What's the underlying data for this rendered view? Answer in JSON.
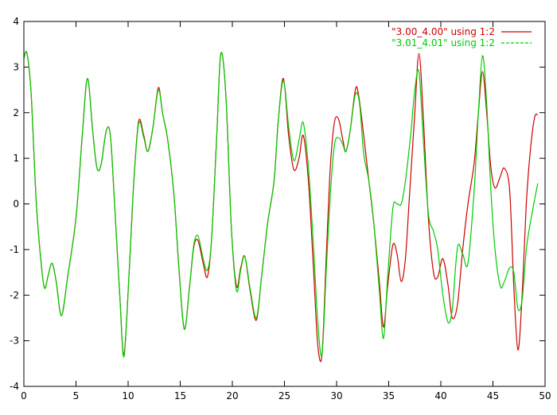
{
  "chart_data": {
    "type": "line",
    "title": "",
    "xlabel": "",
    "ylabel": "",
    "xlim": [
      0,
      50
    ],
    "ylim": [
      -4,
      4
    ],
    "x_ticks": [
      "0",
      "5",
      "10",
      "15",
      "20",
      "25",
      "30",
      "35",
      "40",
      "45",
      "50"
    ],
    "y_ticks": [
      "4",
      "3",
      "2",
      "1",
      "0",
      "-1",
      "-2",
      "-3",
      "-4"
    ],
    "grid": false,
    "legend_position": "top-right",
    "series": [
      {
        "name": "\"3.00_4.00\" using 1:2",
        "color": "#cc0000",
        "points": [
          [
            0,
            3.2
          ],
          [
            0.3,
            3.3
          ],
          [
            0.7,
            2.4
          ],
          [
            1.2,
            0.0
          ],
          [
            1.7,
            -1.4
          ],
          [
            2.0,
            -1.85
          ],
          [
            2.3,
            -1.6
          ],
          [
            2.7,
            -1.3
          ],
          [
            3.1,
            -1.7
          ],
          [
            3.6,
            -2.45
          ],
          [
            4.2,
            -1.6
          ],
          [
            5.0,
            -0.3
          ],
          [
            5.6,
            1.5
          ],
          [
            6.1,
            2.75
          ],
          [
            6.6,
            1.6
          ],
          [
            7.0,
            0.8
          ],
          [
            7.4,
            0.85
          ],
          [
            7.9,
            1.6
          ],
          [
            8.3,
            1.5
          ],
          [
            8.7,
            0.0
          ],
          [
            9.2,
            -2.0
          ],
          [
            9.6,
            -3.3
          ],
          [
            10.1,
            -1.5
          ],
          [
            10.5,
            0.3
          ],
          [
            11.0,
            1.8
          ],
          [
            11.5,
            1.5
          ],
          [
            11.9,
            1.15
          ],
          [
            12.4,
            1.7
          ],
          [
            12.9,
            2.55
          ],
          [
            13.3,
            2.0
          ],
          [
            13.8,
            1.4
          ],
          [
            14.4,
            0.2
          ],
          [
            14.9,
            -1.5
          ],
          [
            15.4,
            -2.75
          ],
          [
            15.9,
            -1.8
          ],
          [
            16.3,
            -0.95
          ],
          [
            16.7,
            -0.8
          ],
          [
            17.2,
            -1.3
          ],
          [
            17.6,
            -1.6
          ],
          [
            18.0,
            -0.8
          ],
          [
            18.5,
            1.5
          ],
          [
            18.9,
            3.3
          ],
          [
            19.4,
            2.3
          ],
          [
            19.9,
            -0.5
          ],
          [
            20.4,
            -1.8
          ],
          [
            20.8,
            -1.4
          ],
          [
            21.2,
            -1.15
          ],
          [
            21.7,
            -1.9
          ],
          [
            22.3,
            -2.55
          ],
          [
            22.8,
            -1.6
          ],
          [
            23.4,
            -0.4
          ],
          [
            24.0,
            0.5
          ],
          [
            24.4,
            1.8
          ],
          [
            24.9,
            2.75
          ],
          [
            25.4,
            1.5
          ],
          [
            25.9,
            0.75
          ],
          [
            26.4,
            1.0
          ],
          [
            26.8,
            1.5
          ],
          [
            27.3,
            0.5
          ],
          [
            27.8,
            -1.5
          ],
          [
            28.2,
            -3.1
          ],
          [
            28.6,
            -3.3
          ],
          [
            29.0,
            -1.2
          ],
          [
            29.4,
            0.8
          ],
          [
            29.8,
            1.8
          ],
          [
            30.2,
            1.85
          ],
          [
            30.6,
            1.4
          ],
          [
            30.9,
            1.15
          ],
          [
            31.3,
            1.6
          ],
          [
            31.8,
            2.5
          ],
          [
            32.1,
            2.4
          ],
          [
            32.6,
            1.5
          ],
          [
            33.1,
            0.5
          ],
          [
            33.6,
            -0.5
          ],
          [
            34.1,
            -1.7
          ],
          [
            34.5,
            -2.7
          ],
          [
            34.9,
            -1.8
          ],
          [
            35.4,
            -0.9
          ],
          [
            35.8,
            -1.1
          ],
          [
            36.2,
            -1.7
          ],
          [
            36.6,
            -1.2
          ],
          [
            37.0,
            0.2
          ],
          [
            37.5,
            2.0
          ],
          [
            37.9,
            3.3
          ],
          [
            38.3,
            2.0
          ],
          [
            38.8,
            -0.3
          ],
          [
            39.3,
            -1.5
          ],
          [
            39.7,
            -1.6
          ],
          [
            40.2,
            -1.2
          ],
          [
            40.7,
            -1.8
          ],
          [
            41.1,
            -2.5
          ],
          [
            41.6,
            -2.2
          ],
          [
            42.1,
            -1.0
          ],
          [
            42.6,
            0.0
          ],
          [
            43.2,
            0.9
          ],
          [
            43.6,
            2.0
          ],
          [
            44.0,
            2.9
          ],
          [
            44.4,
            2.0
          ],
          [
            44.8,
            0.8
          ],
          [
            45.2,
            0.35
          ],
          [
            45.7,
            0.6
          ],
          [
            46.1,
            0.78
          ],
          [
            46.6,
            0.3
          ],
          [
            47.0,
            -1.8
          ],
          [
            47.4,
            -3.2
          ],
          [
            47.8,
            -2.0
          ],
          [
            48.2,
            0.0
          ],
          [
            48.6,
            1.2
          ],
          [
            49.0,
            1.9
          ],
          [
            49.3,
            1.95
          ]
        ]
      },
      {
        "name": "\"3.01_4.01\" using 1:2",
        "color": "#00cc00",
        "points": [
          [
            0,
            3.2
          ],
          [
            0.3,
            3.3
          ],
          [
            0.7,
            2.4
          ],
          [
            1.2,
            0.0
          ],
          [
            1.7,
            -1.4
          ],
          [
            2.0,
            -1.85
          ],
          [
            2.3,
            -1.6
          ],
          [
            2.7,
            -1.3
          ],
          [
            3.1,
            -1.7
          ],
          [
            3.6,
            -2.45
          ],
          [
            4.2,
            -1.6
          ],
          [
            5.0,
            -0.3
          ],
          [
            5.6,
            1.5
          ],
          [
            6.1,
            2.75
          ],
          [
            6.6,
            1.6
          ],
          [
            7.0,
            0.8
          ],
          [
            7.4,
            0.85
          ],
          [
            7.9,
            1.6
          ],
          [
            8.3,
            1.5
          ],
          [
            8.7,
            0.0
          ],
          [
            9.2,
            -2.0
          ],
          [
            9.6,
            -3.35
          ],
          [
            10.1,
            -1.5
          ],
          [
            10.5,
            0.3
          ],
          [
            11.0,
            1.75
          ],
          [
            11.5,
            1.45
          ],
          [
            11.9,
            1.15
          ],
          [
            12.4,
            1.7
          ],
          [
            12.9,
            2.5
          ],
          [
            13.3,
            2.0
          ],
          [
            13.8,
            1.4
          ],
          [
            14.4,
            0.2
          ],
          [
            14.9,
            -1.5
          ],
          [
            15.4,
            -2.75
          ],
          [
            15.9,
            -1.8
          ],
          [
            16.3,
            -0.9
          ],
          [
            16.7,
            -0.7
          ],
          [
            17.2,
            -1.2
          ],
          [
            17.6,
            -1.45
          ],
          [
            18.0,
            -0.8
          ],
          [
            18.5,
            1.5
          ],
          [
            18.9,
            3.3
          ],
          [
            19.4,
            2.3
          ],
          [
            19.9,
            -0.5
          ],
          [
            20.4,
            -1.9
          ],
          [
            20.8,
            -1.45
          ],
          [
            21.2,
            -1.15
          ],
          [
            21.7,
            -1.85
          ],
          [
            22.3,
            -2.5
          ],
          [
            22.8,
            -1.6
          ],
          [
            23.4,
            -0.4
          ],
          [
            24.0,
            0.5
          ],
          [
            24.4,
            1.8
          ],
          [
            24.9,
            2.7
          ],
          [
            25.4,
            1.7
          ],
          [
            25.9,
            0.95
          ],
          [
            26.4,
            1.4
          ],
          [
            26.8,
            1.78
          ],
          [
            27.3,
            0.8
          ],
          [
            27.8,
            -1.0
          ],
          [
            28.2,
            -2.6
          ],
          [
            28.6,
            -3.3
          ],
          [
            29.0,
            -1.5
          ],
          [
            29.4,
            0.2
          ],
          [
            29.8,
            1.3
          ],
          [
            30.2,
            1.45
          ],
          [
            30.6,
            1.3
          ],
          [
            30.9,
            1.15
          ],
          [
            31.3,
            1.6
          ],
          [
            31.8,
            2.4
          ],
          [
            32.2,
            2.2
          ],
          [
            32.6,
            1.1
          ],
          [
            33.1,
            0.5
          ],
          [
            33.6,
            -0.5
          ],
          [
            34.1,
            -1.9
          ],
          [
            34.5,
            -2.95
          ],
          [
            34.9,
            -1.6
          ],
          [
            35.4,
            -0.1
          ],
          [
            35.8,
            -0.0
          ],
          [
            36.2,
            -0.0
          ],
          [
            36.6,
            0.5
          ],
          [
            37.1,
            1.5
          ],
          [
            37.5,
            2.5
          ],
          [
            37.9,
            2.9
          ],
          [
            38.3,
            1.5
          ],
          [
            38.8,
            -0.2
          ],
          [
            39.3,
            -0.6
          ],
          [
            39.7,
            -1.0
          ],
          [
            40.2,
            -2.0
          ],
          [
            40.7,
            -2.6
          ],
          [
            41.1,
            -2.3
          ],
          [
            41.6,
            -0.95
          ],
          [
            42.1,
            -1.1
          ],
          [
            42.6,
            -1.3
          ],
          [
            43.2,
            0.3
          ],
          [
            43.6,
            2.0
          ],
          [
            44.0,
            3.25
          ],
          [
            44.4,
            2.2
          ],
          [
            44.8,
            0.3
          ],
          [
            45.2,
            -1.0
          ],
          [
            45.7,
            -1.8
          ],
          [
            46.1,
            -1.7
          ],
          [
            46.6,
            -1.4
          ],
          [
            47.0,
            -1.5
          ],
          [
            47.4,
            -2.3
          ],
          [
            47.8,
            -2.1
          ],
          [
            48.2,
            -1.0
          ],
          [
            48.6,
            -0.4
          ],
          [
            49.0,
            0.1
          ],
          [
            49.3,
            0.45
          ]
        ]
      }
    ]
  }
}
